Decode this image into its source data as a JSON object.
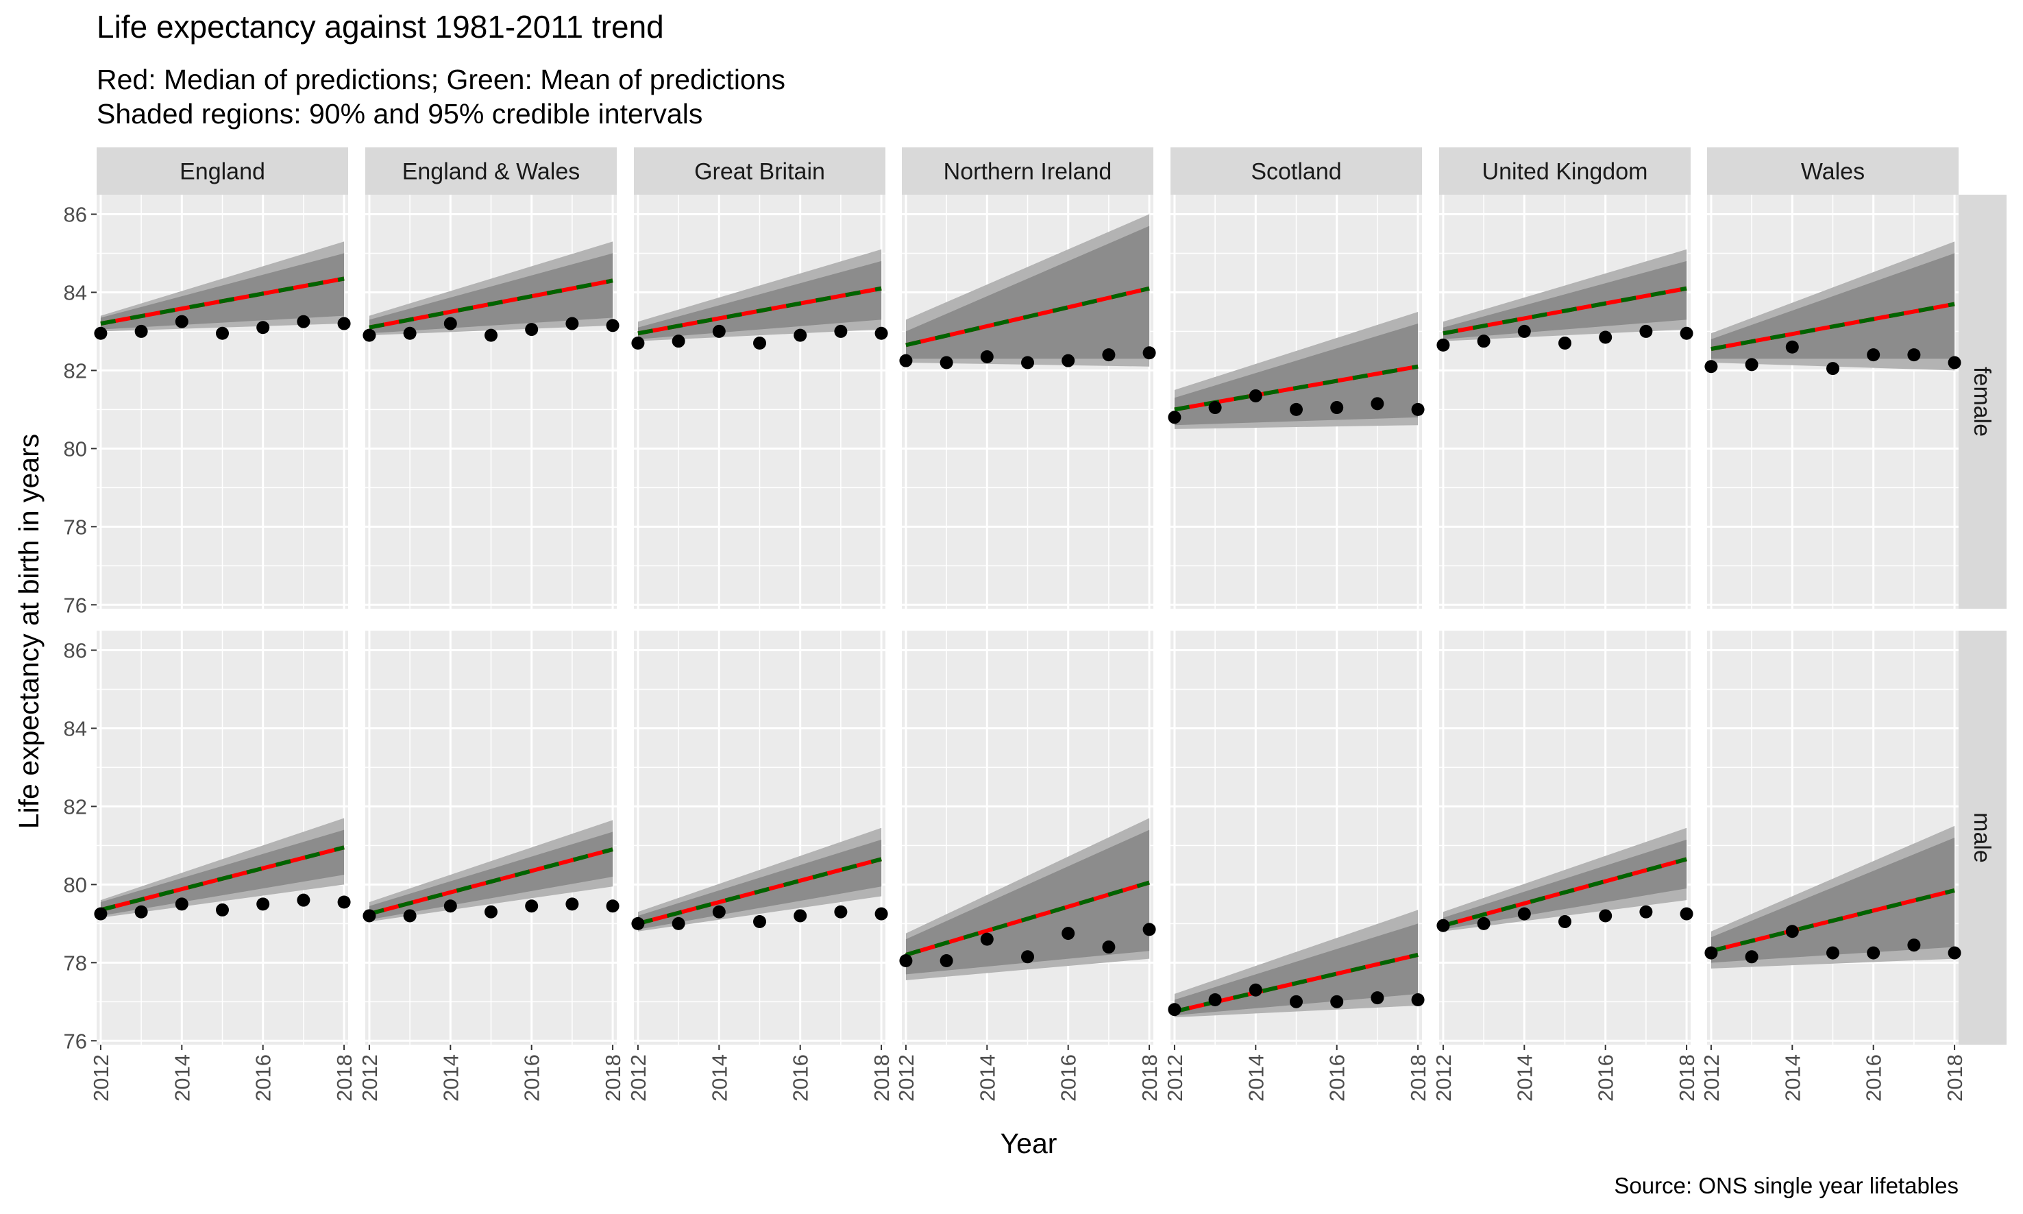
{
  "title": "Life expectancy against 1981-2011 trend",
  "subtitle_lines": [
    "Red: Median of predictions; Green: Mean of predictions",
    "Shaded regions: 90% and 95% credible intervals"
  ],
  "caption": "Source: ONS single year lifetables",
  "colors": {
    "median_line": "#ff0000",
    "mean_line": "#006400",
    "points": "#000000",
    "band_95": "#b3b3b3",
    "band_90": "#8c8c8c",
    "panel_bg": "#ebebeb",
    "grid": "#ffffff",
    "strip_bg": "#d9d9d9"
  },
  "chart_data": {
    "type": "faceted line and scatter with credible interval bands",
    "xlabel": "Year",
    "ylabel": "Life expectancy at birth in years",
    "xlim": [
      2011.9,
      2018.1
    ],
    "ylim": [
      75.9,
      86.5
    ],
    "x_ticks": [
      2012,
      2014,
      2016,
      2018
    ],
    "y_ticks": [
      76,
      78,
      80,
      82,
      84,
      86
    ],
    "grid": true,
    "years": [
      2012,
      2013,
      2014,
      2015,
      2016,
      2017,
      2018
    ],
    "facet_columns": [
      "England",
      "England & Wales",
      "Great Britain",
      "Northern Ireland",
      "Scotland",
      "United Kingdom",
      "Wales"
    ],
    "facet_rows": [
      "female",
      "male"
    ],
    "panels": [
      {
        "region": "England",
        "sex": "female",
        "trend": [
          83.2,
          84.35
        ],
        "ci90": [
          [
            83.05,
            83.35
          ],
          [
            83.4,
            85.0
          ]
        ],
        "ci95": [
          [
            83.0,
            83.4
          ],
          [
            83.2,
            85.3
          ]
        ],
        "observed": [
          82.95,
          83.0,
          83.25,
          82.95,
          83.1,
          83.25,
          83.2
        ]
      },
      {
        "region": "England & Wales",
        "sex": "female",
        "trend": [
          83.1,
          84.3
        ],
        "ci90": [
          [
            82.95,
            83.3
          ],
          [
            83.35,
            85.0
          ]
        ],
        "ci95": [
          [
            82.9,
            83.4
          ],
          [
            83.15,
            85.3
          ]
        ],
        "observed": [
          82.9,
          82.95,
          83.2,
          82.9,
          83.05,
          83.2,
          83.15
        ]
      },
      {
        "region": "Great Britain",
        "sex": "female",
        "trend": [
          82.95,
          84.1
        ],
        "ci90": [
          [
            82.8,
            83.1
          ],
          [
            83.3,
            84.8
          ]
        ],
        "ci95": [
          [
            82.75,
            83.25
          ],
          [
            83.05,
            85.1
          ]
        ],
        "observed": [
          82.7,
          82.75,
          83.0,
          82.7,
          82.9,
          83.0,
          82.95
        ]
      },
      {
        "region": "Northern Ireland",
        "sex": "female",
        "trend": [
          82.65,
          84.1
        ],
        "ci90": [
          [
            82.3,
            83.0
          ],
          [
            82.3,
            85.7
          ]
        ],
        "ci95": [
          [
            82.2,
            83.3
          ],
          [
            82.1,
            86.0
          ]
        ],
        "observed": [
          82.25,
          82.2,
          82.35,
          82.2,
          82.25,
          82.4,
          82.45
        ]
      },
      {
        "region": "Scotland",
        "sex": "female",
        "trend": [
          81.0,
          82.1
        ],
        "ci90": [
          [
            80.6,
            81.3
          ],
          [
            80.8,
            83.2
          ]
        ],
        "ci95": [
          [
            80.5,
            81.5
          ],
          [
            80.6,
            83.5
          ]
        ],
        "observed": [
          80.8,
          81.05,
          81.35,
          81.0,
          81.05,
          81.15,
          81.0
        ]
      },
      {
        "region": "United Kingdom",
        "sex": "female",
        "trend": [
          82.95,
          84.1
        ],
        "ci90": [
          [
            82.8,
            83.1
          ],
          [
            83.3,
            84.8
          ]
        ],
        "ci95": [
          [
            82.75,
            83.25
          ],
          [
            83.05,
            85.1
          ]
        ],
        "observed": [
          82.65,
          82.75,
          83.0,
          82.7,
          82.85,
          83.0,
          82.95
        ]
      },
      {
        "region": "Wales",
        "sex": "female",
        "trend": [
          82.55,
          83.7
        ],
        "ci90": [
          [
            82.3,
            82.8
          ],
          [
            82.3,
            85.0
          ]
        ],
        "ci95": [
          [
            82.2,
            82.95
          ],
          [
            82.0,
            85.3
          ]
        ],
        "observed": [
          82.1,
          82.15,
          82.6,
          82.05,
          82.4,
          82.4,
          82.2
        ]
      },
      {
        "region": "England",
        "sex": "male",
        "trend": [
          79.35,
          80.95
        ],
        "ci90": [
          [
            79.2,
            79.55
          ],
          [
            80.25,
            81.4
          ]
        ],
        "ci95": [
          [
            79.15,
            79.6
          ],
          [
            80.0,
            81.7
          ]
        ],
        "observed": [
          79.25,
          79.3,
          79.5,
          79.35,
          79.5,
          79.6,
          79.55
        ]
      },
      {
        "region": "England & Wales",
        "sex": "male",
        "trend": [
          79.25,
          80.9
        ],
        "ci90": [
          [
            79.1,
            79.45
          ],
          [
            80.2,
            81.35
          ]
        ],
        "ci95": [
          [
            79.05,
            79.55
          ],
          [
            79.95,
            81.65
          ]
        ],
        "observed": [
          79.2,
          79.2,
          79.45,
          79.3,
          79.45,
          79.5,
          79.45
        ]
      },
      {
        "region": "Great Britain",
        "sex": "male",
        "trend": [
          79.0,
          80.65
        ],
        "ci90": [
          [
            78.85,
            79.2
          ],
          [
            79.95,
            81.15
          ]
        ],
        "ci95": [
          [
            78.8,
            79.3
          ],
          [
            79.7,
            81.45
          ]
        ],
        "observed": [
          79.0,
          79.0,
          79.3,
          79.05,
          79.2,
          79.3,
          79.25
        ]
      },
      {
        "region": "Northern Ireland",
        "sex": "male",
        "trend": [
          78.2,
          80.05
        ],
        "ci90": [
          [
            77.7,
            78.6
          ],
          [
            78.3,
            81.4
          ]
        ],
        "ci95": [
          [
            77.55,
            78.75
          ],
          [
            78.1,
            81.7
          ]
        ],
        "observed": [
          78.05,
          78.05,
          78.6,
          78.15,
          78.75,
          78.4,
          78.85
        ]
      },
      {
        "region": "Scotland",
        "sex": "male",
        "trend": [
          76.75,
          78.2
        ],
        "ci90": [
          [
            76.65,
            77.05
          ],
          [
            77.2,
            79.0
          ]
        ],
        "ci95": [
          [
            76.6,
            77.2
          ],
          [
            76.9,
            79.35
          ]
        ],
        "observed": [
          76.8,
          77.05,
          77.3,
          77.0,
          77.0,
          77.1,
          77.05
        ]
      },
      {
        "region": "United Kingdom",
        "sex": "male",
        "trend": [
          78.95,
          80.65
        ],
        "ci90": [
          [
            78.85,
            79.15
          ],
          [
            79.9,
            81.15
          ]
        ],
        "ci95": [
          [
            78.8,
            79.3
          ],
          [
            79.6,
            81.45
          ]
        ],
        "observed": [
          78.95,
          79.0,
          79.25,
          79.05,
          79.2,
          79.3,
          79.25
        ]
      },
      {
        "region": "Wales",
        "sex": "male",
        "trend": [
          78.3,
          79.85
        ],
        "ci90": [
          [
            78.0,
            78.65
          ],
          [
            78.4,
            81.2
          ]
        ],
        "ci95": [
          [
            77.85,
            78.8
          ],
          [
            78.1,
            81.5
          ]
        ],
        "observed": [
          78.25,
          78.15,
          78.8,
          78.25,
          78.25,
          78.45,
          78.25
        ]
      }
    ]
  }
}
